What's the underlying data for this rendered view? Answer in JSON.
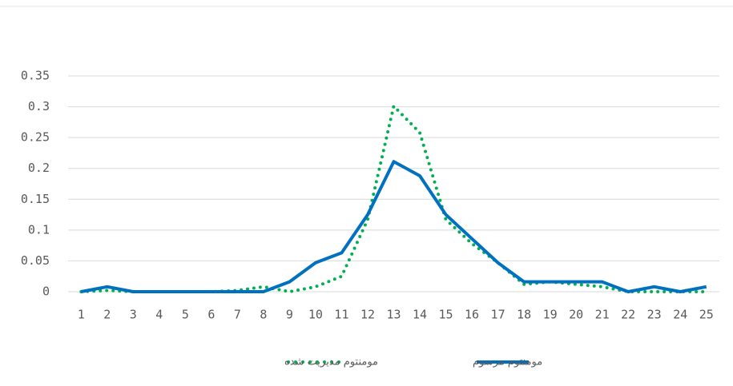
{
  "chart_data": {
    "type": "line",
    "categories": [
      "1",
      "2",
      "3",
      "4",
      "5",
      "6",
      "7",
      "8",
      "9",
      "10",
      "11",
      "12",
      "13",
      "14",
      "15",
      "16",
      "17",
      "18",
      "19",
      "20",
      "21",
      "22",
      "23",
      "24",
      "25"
    ],
    "series": [
      {
        "name": "مومنتوم مدیریت شده",
        "color": "#00b050",
        "style": "dotted",
        "values": [
          0,
          0.002,
          0,
          0,
          0,
          0,
          0.002,
          0.008,
          0,
          0.008,
          0.025,
          0.117,
          0.301,
          0.258,
          0.117,
          0.078,
          0.047,
          0.012,
          0.016,
          0.012,
          0.008,
          0,
          0,
          0,
          0
        ]
      },
      {
        "name": "مومنتوم مرسوم",
        "color": "#0070c0",
        "style": "solid",
        "values": [
          0,
          0.008,
          0,
          0,
          0,
          0,
          0,
          0,
          0.016,
          0.047,
          0.063,
          0.125,
          0.211,
          0.188,
          0.125,
          0.086,
          0.047,
          0.016,
          0.016,
          0.016,
          0.016,
          0,
          0.008,
          0,
          0.008
        ]
      }
    ],
    "ylim": [
      0,
      0.35
    ],
    "yticks": [
      0,
      0.05,
      0.1,
      0.15,
      0.2,
      0.25,
      0.3,
      0.35
    ],
    "grid": true,
    "legend": "bottom"
  }
}
